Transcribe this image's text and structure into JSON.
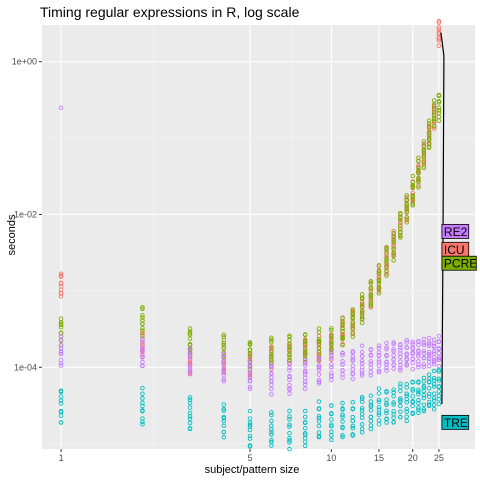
{
  "chart_data": {
    "type": "scatter",
    "title": "Timing regular expressions in R, log scale",
    "xlabel": "subject/pattern size",
    "ylabel": "seconds",
    "x_scale": "log",
    "y_scale": "log",
    "xlim": [
      0.85,
      34
    ],
    "ylim_log10": [
      -5.07,
      0.48
    ],
    "x_ticks": [
      1,
      5,
      10,
      15,
      20,
      25
    ],
    "x_tick_labels": [
      "1",
      "5",
      "10",
      "15",
      "20",
      "25"
    ],
    "y_ticks": [
      0.0001,
      0.01,
      1
    ],
    "y_tick_labels": [
      "1e-04",
      "1e-02",
      "1e+00"
    ],
    "grid": true,
    "legend": "direct labels at right",
    "x_sizes": [
      1,
      2,
      3,
      4,
      5,
      6,
      7,
      8,
      9,
      10,
      11,
      12,
      13,
      14,
      15,
      16,
      17,
      18,
      19,
      20,
      21,
      22,
      23,
      24,
      25
    ],
    "series": [
      {
        "name": "ICU",
        "color": "#F8766D",
        "y": [
          0.0012,
          0.0002,
          0.00012,
          0.00012,
          0.00011,
          0.00013,
          0.00015,
          0.00016,
          0.00017,
          0.00019,
          0.0003,
          0.0004,
          0.0006,
          0.0009,
          0.0014,
          0.0025,
          0.004,
          0.007,
          0.012,
          0.02,
          0.035,
          0.06,
          0.11,
          0.2,
          2.4
        ],
        "spread_log10": 0.3
      },
      {
        "name": "PCRE",
        "color": "#7CAE00",
        "y": [
          0.0003,
          0.0004,
          0.00022,
          0.00018,
          0.00015,
          0.00016,
          0.00018,
          0.00019,
          0.0002,
          0.00022,
          0.0003,
          0.0004,
          0.0006,
          0.0009,
          0.0014,
          0.0025,
          0.004,
          0.007,
          0.012,
          0.02,
          0.035,
          0.06,
          0.11,
          0.2,
          0.25
        ],
        "spread_log10": 0.35
      },
      {
        "name": "RE2",
        "color": "#C77CFF",
        "y": [
          0.00016,
          0.00015,
          0.00012,
          0.0001,
          8e-05,
          7e-05,
          7e-05,
          8e-05,
          9e-05,
          0.0001,
          0.00011,
          0.00011,
          0.00012,
          0.00012,
          0.00013,
          0.00013,
          0.00014,
          0.00014,
          0.00015,
          0.00015,
          0.00015,
          0.00016,
          0.00016,
          0.00016,
          0.00016
        ],
        "spread_log10": 0.35
      },
      {
        "name": "TRE",
        "color": "#00BFC4",
        "y": [
          3e-05,
          3e-05,
          2.5e-05,
          2e-05,
          1.5e-05,
          1.5e-05,
          1.5e-05,
          1.5e-05,
          2e-05,
          2e-05,
          2e-05,
          2e-05,
          2.5e-05,
          2.5e-05,
          3e-05,
          3e-05,
          3e-05,
          3.5e-05,
          3.5e-05,
          4e-05,
          4e-05,
          4.5e-05,
          5e-05,
          5e-05,
          5.5e-05
        ],
        "spread_log10": 0.45
      }
    ],
    "outliers": [
      {
        "series": "RE2",
        "x": 1,
        "y": 0.25
      }
    ],
    "direct_labels": [
      {
        "text": "RE2",
        "y": 0.006
      },
      {
        "text": "ICU",
        "y": 0.0035
      },
      {
        "text": "PCRE",
        "y": 0.0023
      },
      {
        "text": "TRE",
        "y": 1.9e-05
      }
    ]
  }
}
